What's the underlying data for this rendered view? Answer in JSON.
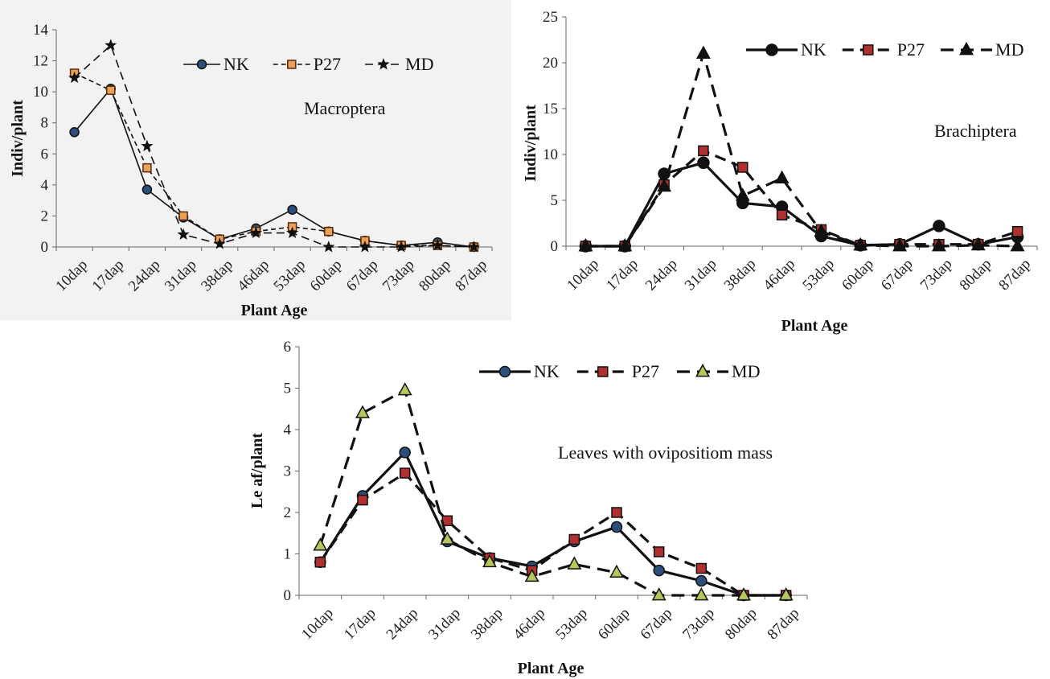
{
  "chart_data": [
    {
      "type": "line",
      "title": "",
      "annotation": "Macroptera",
      "xlabel": "Plant Age",
      "ylabel": "Indiv/plant",
      "ylim": [
        0,
        14
      ],
      "yticks": [
        "0",
        "2",
        "4",
        "6",
        "8",
        "10",
        "12",
        "14"
      ],
      "categories": [
        "10dap",
        "17dap",
        "24dap",
        "31dap",
        "38dap",
        "46dap",
        "53dap",
        "60dap",
        "67dap",
        "73dap",
        "80dap",
        "87dap"
      ],
      "series": [
        {
          "name": "NK",
          "values": [
            7.4,
            10.2,
            3.7,
            1.9,
            0.5,
            1.2,
            2.4,
            1.0,
            0.4,
            0.1,
            0.3,
            0.0
          ]
        },
        {
          "name": "P27",
          "values": [
            11.2,
            10.1,
            5.1,
            2.0,
            0.5,
            1.0,
            1.3,
            1.0,
            0.4,
            0.1,
            0.1,
            0.0
          ]
        },
        {
          "name": "MD",
          "values": [
            10.9,
            13.0,
            6.5,
            0.8,
            0.2,
            0.9,
            0.9,
            0.0,
            0.0,
            0.0,
            0.1,
            0.0
          ]
        }
      ],
      "legend": "top-right",
      "grid": false
    },
    {
      "type": "line",
      "title": "",
      "annotation": "Brachiptera",
      "xlabel": "Plant Age",
      "ylabel": "Indiv/plant",
      "ylim": [
        0,
        25
      ],
      "yticks": [
        "0",
        "5",
        "10",
        "15",
        "20",
        "25"
      ],
      "categories": [
        "10dap",
        "17dap",
        "24dap",
        "31dap",
        "38dap",
        "46dap",
        "53dap",
        "60dap",
        "67dap",
        "73dap",
        "80dap",
        "87dap"
      ],
      "series": [
        {
          "name": "NK",
          "values": [
            0,
            0,
            7.9,
            9.1,
            4.7,
            4.3,
            1.1,
            0.1,
            0.2,
            2.2,
            0.2,
            1.0
          ]
        },
        {
          "name": "P27",
          "values": [
            0,
            0,
            6.7,
            10.4,
            8.6,
            3.4,
            1.8,
            0.1,
            0.2,
            0.2,
            0.2,
            1.6
          ]
        },
        {
          "name": "MD",
          "values": [
            0,
            0,
            6.5,
            21.0,
            5.5,
            7.4,
            1.6,
            0.1,
            0.0,
            0.0,
            0.1,
            0.0
          ]
        }
      ],
      "legend": "top-right",
      "grid": false
    },
    {
      "type": "line",
      "title": "",
      "annotation": "Leaves with ovipositiom  mass",
      "xlabel": "Plant Age",
      "ylabel": "Le af/plant",
      "ylim": [
        0,
        6
      ],
      "yticks": [
        "0",
        "1",
        "2",
        "3",
        "4",
        "5",
        "6"
      ],
      "categories": [
        "10dap",
        "17dap",
        "24dap",
        "31dap",
        "38dap",
        "46dap",
        "53dap",
        "60dap",
        "67dap",
        "73dap",
        "80dap",
        "87dap"
      ],
      "series": [
        {
          "name": "NK",
          "values": [
            0.8,
            2.4,
            3.45,
            1.3,
            0.9,
            0.7,
            1.3,
            1.65,
            0.6,
            0.35,
            0.0,
            0.0
          ]
        },
        {
          "name": "P27",
          "values": [
            0.8,
            2.3,
            2.95,
            1.8,
            0.9,
            0.6,
            1.35,
            2.0,
            1.05,
            0.65,
            0.0,
            0.0
          ]
        },
        {
          "name": "MD",
          "values": [
            1.2,
            4.4,
            4.95,
            1.35,
            0.8,
            0.45,
            0.75,
            0.55,
            0.0,
            0.0,
            0.0,
            0.0
          ]
        }
      ],
      "legend": "top-right",
      "grid": false
    }
  ]
}
